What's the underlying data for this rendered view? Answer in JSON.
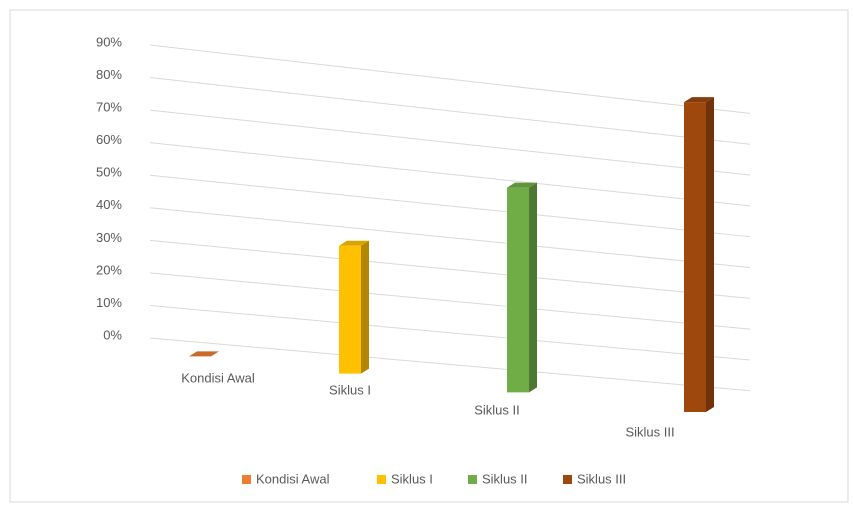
{
  "chart_data": {
    "type": "bar3d",
    "categories": [
      "Kondisi Awal",
      "Siklus I",
      "Siklus II",
      "Siklus III"
    ],
    "values": [
      0,
      40,
      65,
      100
    ],
    "colors": [
      "#ed7d31",
      "#ffc000",
      "#70ad47",
      "#9e480e"
    ],
    "ylim": [
      0,
      90
    ],
    "yticks": [
      {
        "value": 0,
        "label": "0%"
      },
      {
        "value": 10,
        "label": "10%"
      },
      {
        "value": 20,
        "label": "20%"
      },
      {
        "value": 30,
        "label": "30%"
      },
      {
        "value": 40,
        "label": "40%"
      },
      {
        "value": 50,
        "label": "50%"
      },
      {
        "value": 60,
        "label": "60%"
      },
      {
        "value": 70,
        "label": "70%"
      },
      {
        "value": 80,
        "label": "80%"
      },
      {
        "value": 90,
        "label": "90%"
      }
    ],
    "grid": true
  }
}
